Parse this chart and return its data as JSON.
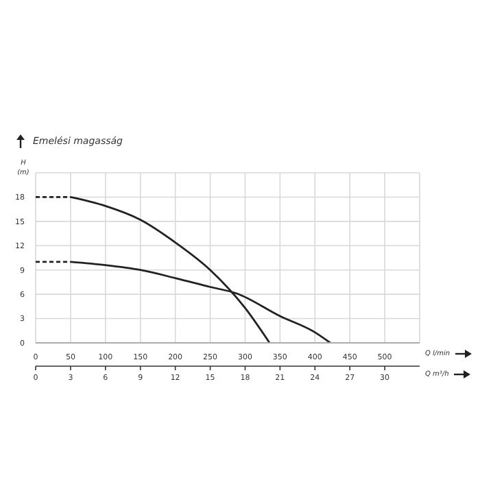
{
  "chart_data": {
    "type": "line",
    "title": "Emelési magasság",
    "ylabel": "H (m)",
    "xlabel": "Q l/min",
    "x2label": "Q m³/h",
    "xlim": [
      0,
      550
    ],
    "xticks": [
      0,
      50,
      100,
      150,
      200,
      250,
      300,
      350,
      400,
      450,
      500
    ],
    "x2lim": [
      0,
      33
    ],
    "x2ticks": [
      0,
      3,
      6,
      9,
      12,
      15,
      18,
      21,
      24,
      27,
      30
    ],
    "ylim": [
      0,
      21
    ],
    "yticks": [
      0,
      3,
      6,
      9,
      12,
      15,
      18
    ],
    "grid": true,
    "legend": false,
    "marker": "none",
    "series": [
      {
        "color": "#222222",
        "line_style": "dashed",
        "x": [
          0,
          50
        ],
        "values": [
          18,
          18
        ]
      },
      {
        "color": "#222222",
        "line_style": "solid",
        "x": [
          50,
          100,
          150,
          200,
          250,
          300,
          335
        ],
        "values": [
          18,
          16.9,
          15.2,
          12.4,
          9,
          4.3,
          0
        ]
      },
      {
        "color": "#222222",
        "line_style": "dashed",
        "x": [
          0,
          50
        ],
        "values": [
          10,
          10
        ]
      },
      {
        "color": "#222222",
        "line_style": "solid",
        "x": [
          50,
          100,
          150,
          200,
          250,
          288,
          350,
          400,
          422
        ],
        "values": [
          10,
          9.6,
          9,
          8,
          6.9,
          6.1,
          3.3,
          1.3,
          0
        ]
      }
    ]
  }
}
